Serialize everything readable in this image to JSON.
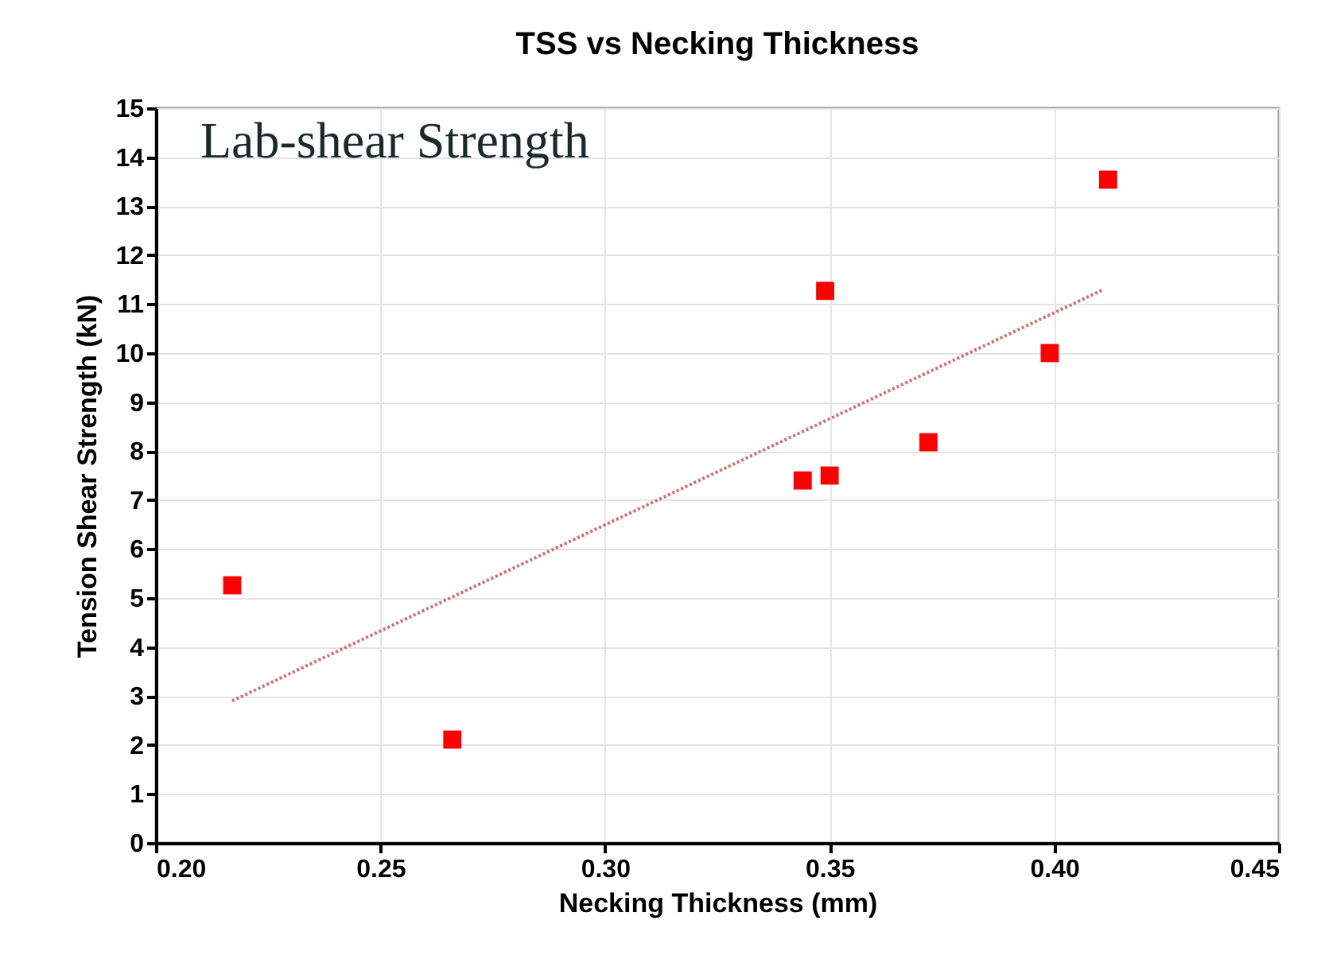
{
  "chart_data": {
    "type": "scatter",
    "title": "TSS vs Necking Thickness",
    "xlabel": "Necking Thickness (mm)",
    "ylabel": "Tension Shear Strength (kN)",
    "annotations": [
      "Lab-shear Strength"
    ],
    "series": [
      {
        "type": "scatter",
        "color": "#ff0000",
        "marker": "square",
        "x": [
          0.217,
          0.266,
          0.344,
          0.35,
          0.349,
          0.372,
          0.399,
          0.412
        ],
        "values": [
          5.26,
          2.11,
          7.4,
          7.5,
          11.27,
          8.18,
          10.0,
          13.54
        ]
      },
      {
        "type": "line",
        "color": "#d9686a",
        "line_style": "dotted",
        "x": [
          0.217,
          0.411
        ],
        "values": [
          2.9,
          11.3
        ]
      }
    ],
    "xlim": [
      0.2,
      0.45
    ],
    "xticks": [
      {
        "value": 0.2,
        "label": "0.20"
      },
      {
        "value": 0.25,
        "label": "0.25"
      },
      {
        "value": 0.3,
        "label": "0.30"
      },
      {
        "value": 0.35,
        "label": "0.35"
      },
      {
        "value": 0.4,
        "label": "0.40"
      },
      {
        "value": 0.45,
        "label": "0.45"
      }
    ],
    "ylim": [
      0,
      15
    ],
    "yticks": [
      0,
      1,
      2,
      3,
      4,
      5,
      6,
      7,
      8,
      9,
      10,
      11,
      12,
      13,
      14,
      15
    ],
    "grid": true
  }
}
